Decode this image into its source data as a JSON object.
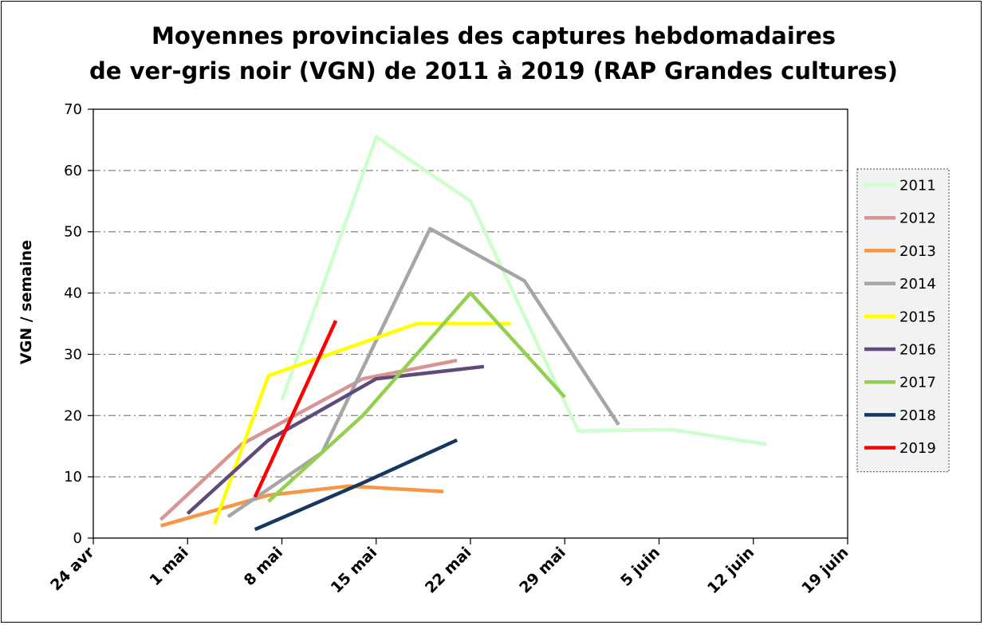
{
  "chart_data": {
    "type": "line",
    "title_lines": [
      "Moyennes provinciales des captures hebdomadaires",
      "de ver-gris noir (VGN) de 2011 à 2019 (RAP Grandes cultures)"
    ],
    "ylabel": "VGN / semaine",
    "xlabel": "",
    "ylim": [
      0,
      70
    ],
    "yticks": [
      0,
      10,
      20,
      30,
      40,
      50,
      60,
      70
    ],
    "xlim": [
      "2019-04-24",
      "2019-06-19"
    ],
    "xticks": [
      {
        "date": "2019-04-24",
        "label": "24 avr"
      },
      {
        "date": "2019-05-01",
        "label": "1 mai"
      },
      {
        "date": "2019-05-08",
        "label": "8 mai"
      },
      {
        "date": "2019-05-15",
        "label": "15 mai"
      },
      {
        "date": "2019-05-22",
        "label": "22 mai"
      },
      {
        "date": "2019-05-29",
        "label": "29 mai"
      },
      {
        "date": "2019-06-05",
        "label": "5 juin"
      },
      {
        "date": "2019-06-12",
        "label": "12 juin"
      },
      {
        "date": "2019-06-19",
        "label": "19 juin"
      }
    ],
    "grid": "horizontal dash-dot",
    "legend_position": "right",
    "series": [
      {
        "name": "2011",
        "color": "#ccffcc",
        "points": [
          [
            "2019-05-08",
            22.5
          ],
          [
            "2019-05-15",
            65.5
          ],
          [
            "2019-05-22",
            55
          ],
          [
            "2019-05-30",
            17.5
          ],
          [
            "2019-06-06",
            17.7
          ],
          [
            "2019-06-13",
            15.3
          ]
        ]
      },
      {
        "name": "2012",
        "color": "#d99594",
        "points": [
          [
            "2019-04-29",
            3
          ],
          [
            "2019-05-05",
            15.3
          ],
          [
            "2019-05-14",
            26
          ],
          [
            "2019-05-21",
            29
          ]
        ]
      },
      {
        "name": "2013",
        "color": "#f79646",
        "points": [
          [
            "2019-04-29",
            2
          ],
          [
            "2019-05-07",
            7
          ],
          [
            "2019-05-13",
            8.5
          ],
          [
            "2019-05-20",
            7.6
          ]
        ]
      },
      {
        "name": "2014",
        "color": "#a6a6a6",
        "points": [
          [
            "2019-05-04",
            3.5
          ],
          [
            "2019-05-11",
            14
          ],
          [
            "2019-05-19",
            50.5
          ],
          [
            "2019-05-26",
            42
          ],
          [
            "2019-06-02",
            18.5
          ]
        ]
      },
      {
        "name": "2015",
        "color": "#ffff00",
        "points": [
          [
            "2019-05-03",
            2.3
          ],
          [
            "2019-05-07",
            26.5
          ],
          [
            "2019-05-18",
            35
          ],
          [
            "2019-05-25",
            35
          ]
        ]
      },
      {
        "name": "2016",
        "color": "#604a7b",
        "points": [
          [
            "2019-05-01",
            4
          ],
          [
            "2019-05-07",
            16
          ],
          [
            "2019-05-15",
            26
          ],
          [
            "2019-05-23",
            28
          ]
        ]
      },
      {
        "name": "2017",
        "color": "#92d050",
        "points": [
          [
            "2019-05-07",
            6
          ],
          [
            "2019-05-14",
            20
          ],
          [
            "2019-05-22",
            40
          ],
          [
            "2019-05-29",
            23
          ]
        ]
      },
      {
        "name": "2018",
        "color": "#17375e",
        "points": [
          [
            "2019-05-06",
            1.4
          ],
          [
            "2019-05-14",
            9
          ],
          [
            "2019-05-21",
            16
          ]
        ]
      },
      {
        "name": "2019",
        "color": "#ff0000",
        "points": [
          [
            "2019-05-06",
            6.7
          ],
          [
            "2019-05-12",
            35.5
          ]
        ]
      }
    ]
  }
}
